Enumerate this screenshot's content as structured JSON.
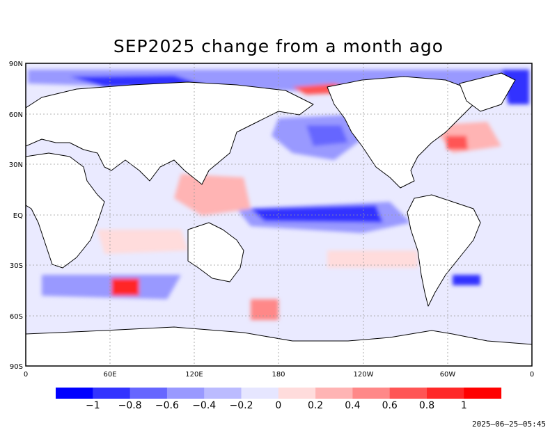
{
  "title": "SEP2025 change from a month ago",
  "timestamp": "2025–06–25–05:45",
  "map": {
    "lat_labels": [
      "90N",
      "60N",
      "30N",
      "EQ",
      "30S",
      "60S",
      "90S"
    ],
    "lon_labels": [
      "0",
      "60E",
      "120E",
      "180",
      "120W",
      "60W",
      "0"
    ]
  },
  "colorbar": {
    "labels": [
      "−1",
      "−0.8",
      "−0.6",
      "−0.4",
      "−0.2",
      "0",
      "0.2",
      "0.4",
      "0.6",
      "0.8",
      "1"
    ],
    "colors": [
      "#0000ff",
      "#3333ff",
      "#6666ff",
      "#9999ff",
      "#bbbbff",
      "#e6e6ff",
      "#ffdcdc",
      "#ffb4b4",
      "#ff8888",
      "#ff5555",
      "#ff2828",
      "#ff0000"
    ]
  },
  "colors": {
    "land": "#ffffff",
    "coast": "#000000",
    "grid": "#999999"
  }
}
